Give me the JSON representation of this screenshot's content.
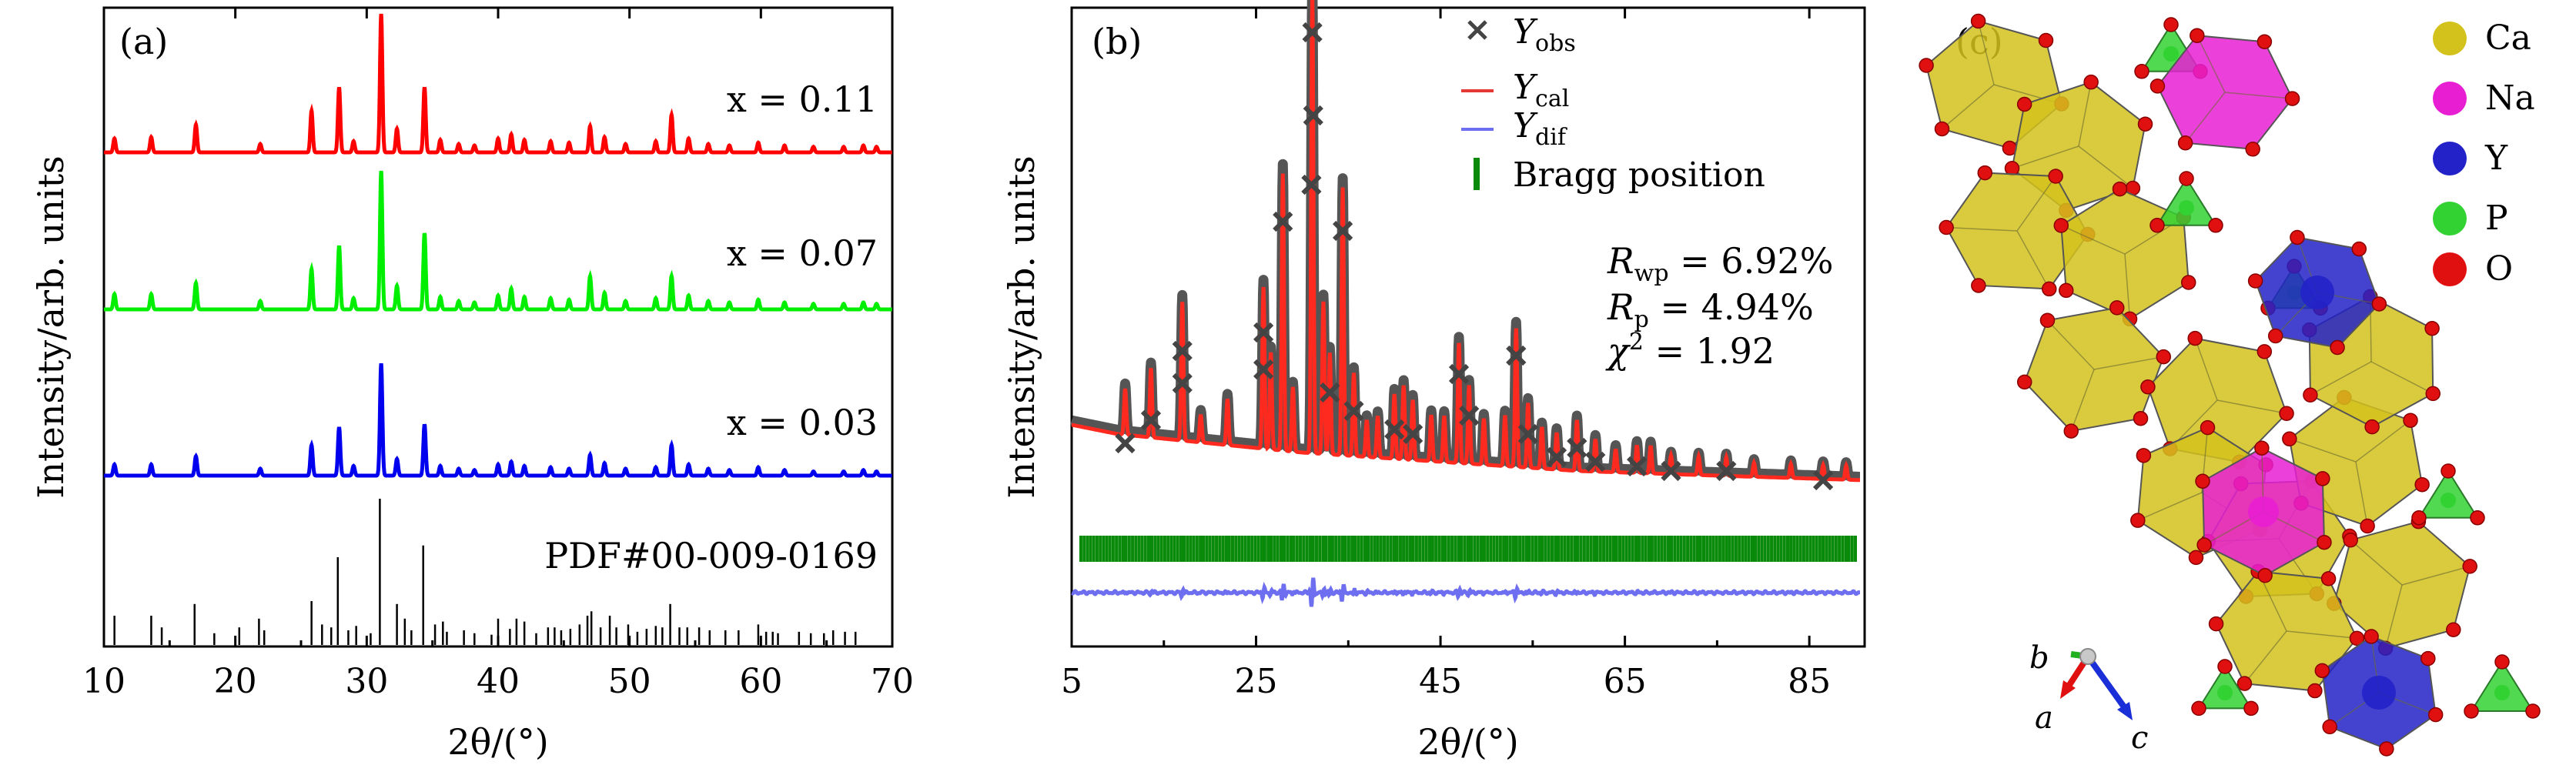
{
  "chart_data": [
    {
      "panel": "a",
      "type": "line",
      "panel_label": "(a)",
      "xlabel": "2θ/(°)",
      "ylabel": "Intensity/arb. units",
      "xlim": [
        10,
        70
      ],
      "xticks": [
        10,
        20,
        30,
        40,
        50,
        60,
        70
      ],
      "series": [
        {
          "name": "x = 0.11",
          "color": "#ff0000",
          "peaks": [
            [
              10.8,
              10
            ],
            [
              13.6,
              11
            ],
            [
              17.0,
              20
            ],
            [
              21.9,
              6
            ],
            [
              25.8,
              30
            ],
            [
              27.9,
              47
            ],
            [
              29.0,
              8
            ],
            [
              31.1,
              100
            ],
            [
              32.3,
              17
            ],
            [
              34.4,
              47
            ],
            [
              35.6,
              9
            ],
            [
              37.0,
              6
            ],
            [
              38.2,
              5
            ],
            [
              40.0,
              10
            ],
            [
              41.0,
              13
            ],
            [
              42.0,
              9
            ],
            [
              44.0,
              8
            ],
            [
              45.4,
              7
            ],
            [
              47.0,
              19
            ],
            [
              48.1,
              11
            ],
            [
              49.7,
              6
            ],
            [
              52.0,
              8
            ],
            [
              53.2,
              27
            ],
            [
              54.5,
              10
            ],
            [
              56.0,
              6
            ],
            [
              57.6,
              5
            ],
            [
              59.8,
              7
            ],
            [
              61.8,
              5
            ],
            [
              64.0,
              4
            ],
            [
              66.3,
              4
            ],
            [
              67.8,
              5
            ],
            [
              68.8,
              4
            ]
          ]
        },
        {
          "name": "x = 0.07",
          "color": "#00ee00",
          "peaks": [
            [
              10.8,
              11
            ],
            [
              13.6,
              11
            ],
            [
              17.0,
              19
            ],
            [
              21.9,
              6
            ],
            [
              25.8,
              29
            ],
            [
              27.9,
              46
            ],
            [
              29.0,
              8
            ],
            [
              31.1,
              100
            ],
            [
              32.3,
              17
            ],
            [
              34.4,
              55
            ],
            [
              35.6,
              9
            ],
            [
              37.0,
              6
            ],
            [
              38.2,
              5
            ],
            [
              40.0,
              10
            ],
            [
              41.0,
              15
            ],
            [
              42.0,
              9
            ],
            [
              44.0,
              8
            ],
            [
              45.4,
              7
            ],
            [
              47.0,
              24
            ],
            [
              48.1,
              12
            ],
            [
              49.7,
              6
            ],
            [
              52.0,
              8
            ],
            [
              53.2,
              24
            ],
            [
              54.5,
              10
            ],
            [
              56.0,
              6
            ],
            [
              57.6,
              5
            ],
            [
              59.8,
              7
            ],
            [
              61.8,
              5
            ],
            [
              64.0,
              4
            ],
            [
              66.3,
              4
            ],
            [
              67.8,
              5
            ],
            [
              68.8,
              4
            ]
          ]
        },
        {
          "name": "x = 0.03",
          "color": "#0000ee",
          "peaks": [
            [
              10.8,
              8
            ],
            [
              13.6,
              8
            ],
            [
              17.0,
              14
            ],
            [
              21.9,
              5
            ],
            [
              25.8,
              22
            ],
            [
              27.9,
              35
            ],
            [
              29.0,
              7
            ],
            [
              31.1,
              81
            ],
            [
              32.3,
              12
            ],
            [
              34.4,
              37
            ],
            [
              35.6,
              7
            ],
            [
              37.0,
              5
            ],
            [
              38.2,
              4
            ],
            [
              40.0,
              8
            ],
            [
              41.0,
              10
            ],
            [
              42.0,
              7
            ],
            [
              44.0,
              6
            ],
            [
              45.4,
              5
            ],
            [
              47.0,
              15
            ],
            [
              48.1,
              9
            ],
            [
              49.7,
              5
            ],
            [
              52.0,
              6
            ],
            [
              53.2,
              22
            ],
            [
              54.5,
              8
            ],
            [
              56.0,
              5
            ],
            [
              57.6,
              4
            ],
            [
              59.8,
              6
            ],
            [
              61.8,
              4
            ],
            [
              64.0,
              3
            ],
            [
              66.3,
              3
            ],
            [
              67.8,
              4
            ],
            [
              68.8,
              3
            ]
          ]
        },
        {
          "name": "PDF#00-009-0169",
          "color": "#000000",
          "sticks": [
            [
              10.8,
              20
            ],
            [
              13.6,
              20
            ],
            [
              14.4,
              12
            ],
            [
              16.9,
              28
            ],
            [
              18.4,
              8
            ],
            [
              20.3,
              12
            ],
            [
              21.8,
              18
            ],
            [
              22.2,
              10
            ],
            [
              25.8,
              30
            ],
            [
              26.6,
              14
            ],
            [
              27.3,
              12
            ],
            [
              27.8,
              60
            ],
            [
              28.6,
              10
            ],
            [
              29.2,
              13
            ],
            [
              30.3,
              8
            ],
            [
              31.0,
              100
            ],
            [
              32.3,
              28
            ],
            [
              32.9,
              18
            ],
            [
              33.4,
              10
            ],
            [
              34.3,
              68
            ],
            [
              35.2,
              14
            ],
            [
              35.8,
              16
            ],
            [
              36.1,
              9
            ],
            [
              37.4,
              10
            ],
            [
              38.2,
              8
            ],
            [
              39.5,
              7
            ],
            [
              40.0,
              18
            ],
            [
              40.9,
              11
            ],
            [
              41.4,
              18
            ],
            [
              42.0,
              16
            ],
            [
              42.9,
              8
            ],
            [
              43.8,
              12
            ],
            [
              44.3,
              12
            ],
            [
              44.8,
              10
            ],
            [
              45.5,
              11
            ],
            [
              46.2,
              14
            ],
            [
              46.8,
              20
            ],
            [
              47.1,
              23
            ],
            [
              47.8,
              12
            ],
            [
              48.5,
              20
            ],
            [
              49.0,
              12
            ],
            [
              49.9,
              14
            ],
            [
              50.6,
              9
            ],
            [
              51.3,
              11
            ],
            [
              52.0,
              13
            ],
            [
              52.5,
              12
            ],
            [
              53.1,
              28
            ],
            [
              53.8,
              12
            ],
            [
              54.4,
              12
            ],
            [
              55.3,
              12
            ],
            [
              56.1,
              10
            ],
            [
              57.3,
              10
            ],
            [
              58.3,
              10
            ],
            [
              59.8,
              14
            ],
            [
              60.4,
              9
            ],
            [
              60.9,
              9
            ],
            [
              61.3,
              8
            ],
            [
              62.9,
              9
            ],
            [
              63.8,
              8
            ],
            [
              64.8,
              8
            ],
            [
              65.5,
              10
            ],
            [
              66.4,
              9
            ],
            [
              67.2,
              9
            ]
          ]
        }
      ]
    },
    {
      "panel": "b",
      "type": "line",
      "panel_label": "(b)",
      "xlabel": "2θ/(°)",
      "ylabel": "Intensity/arb. units",
      "xlim": [
        5,
        91
      ],
      "xticks": [
        5,
        25,
        45,
        65,
        85
      ],
      "legend_position": "top-right",
      "legend": [
        {
          "name": "Y",
          "sub": "obs",
          "color": "#444444",
          "marker": "x"
        },
        {
          "name": "Y",
          "sub": "cal",
          "color": "#e53935",
          "marker": "line"
        },
        {
          "name": "Y",
          "sub": "dif",
          "color": "#6e6ef0",
          "marker": "line"
        },
        {
          "name": "Bragg position",
          "sub": "",
          "color": "#0a8a0a",
          "marker": "bar"
        }
      ],
      "stats": [
        {
          "sym": "R",
          "sub": "wp",
          "sup": "",
          "val": " = 6.92%"
        },
        {
          "sym": "R",
          "sub": "p",
          "sup": "",
          "val": " = 4.94%"
        },
        {
          "sym": "χ",
          "sub": "",
          "sup": "2",
          "val": " = 1.92"
        }
      ],
      "background": [
        [
          5,
          18
        ],
        [
          10,
          16
        ],
        [
          20,
          14
        ],
        [
          30,
          12
        ],
        [
          45,
          10
        ],
        [
          60,
          8
        ],
        [
          75,
          7
        ],
        [
          91,
          6
        ]
      ],
      "peaks": [
        [
          10.8,
          10
        ],
        [
          13.6,
          15
        ],
        [
          17.0,
          30
        ],
        [
          19.0,
          6
        ],
        [
          21.9,
          10
        ],
        [
          25.8,
          35
        ],
        [
          26.6,
          21
        ],
        [
          27.9,
          60
        ],
        [
          29.0,
          14
        ],
        [
          31.1,
          100
        ],
        [
          32.3,
          33
        ],
        [
          33.0,
          22
        ],
        [
          34.4,
          58
        ],
        [
          35.6,
          18
        ],
        [
          37.0,
          8
        ],
        [
          38.2,
          9
        ],
        [
          40.0,
          14
        ],
        [
          41.0,
          16
        ],
        [
          42.0,
          13
        ],
        [
          44.0,
          10
        ],
        [
          45.4,
          10
        ],
        [
          47.0,
          26
        ],
        [
          48.1,
          17
        ],
        [
          49.7,
          10
        ],
        [
          52.0,
          11
        ],
        [
          53.2,
          30
        ],
        [
          54.5,
          14
        ],
        [
          56.0,
          9
        ],
        [
          57.6,
          8
        ],
        [
          59.8,
          11
        ],
        [
          61.8,
          7
        ],
        [
          64.0,
          5
        ],
        [
          66.3,
          6
        ],
        [
          67.8,
          6
        ],
        [
          70.0,
          4
        ],
        [
          73.0,
          4
        ],
        [
          76.0,
          4
        ],
        [
          79.0,
          3
        ],
        [
          83.0,
          3
        ],
        [
          86.5,
          3
        ],
        [
          89.0,
          3
        ]
      ],
      "obs_marks": [
        [
          31.1,
          103
        ],
        [
          31.2,
          85
        ],
        [
          31.0,
          70
        ],
        [
          34.4,
          60
        ],
        [
          27.9,
          62
        ],
        [
          25.8,
          38
        ],
        [
          25.8,
          30
        ],
        [
          17.0,
          34
        ],
        [
          17.0,
          27
        ],
        [
          53.2,
          33
        ],
        [
          47.0,
          29
        ],
        [
          13.6,
          19
        ],
        [
          10.8,
          14
        ],
        [
          35.6,
          21
        ],
        [
          40.0,
          17
        ],
        [
          42.0,
          16
        ],
        [
          33.0,
          25
        ],
        [
          48.1,
          20
        ],
        [
          59.8,
          13
        ],
        [
          54.5,
          16
        ],
        [
          57.6,
          11
        ],
        [
          61.8,
          10
        ],
        [
          66.3,
          9
        ],
        [
          70.0,
          8
        ],
        [
          76.0,
          8
        ],
        [
          86.5,
          6
        ]
      ],
      "bragg_start": 6.0,
      "bragg_end": 90.0
    }
  ],
  "panel_c": {
    "label": "(c)",
    "legend": [
      {
        "name": "Ca",
        "color": "#d4c21c"
      },
      {
        "name": "Na",
        "color": "#e81ed2"
      },
      {
        "name": "Y",
        "color": "#2222c8"
      },
      {
        "name": "P",
        "color": "#32d232"
      },
      {
        "name": "O",
        "color": "#e01010"
      }
    ],
    "axes": {
      "a": "a",
      "b": "b",
      "c": "c"
    }
  }
}
